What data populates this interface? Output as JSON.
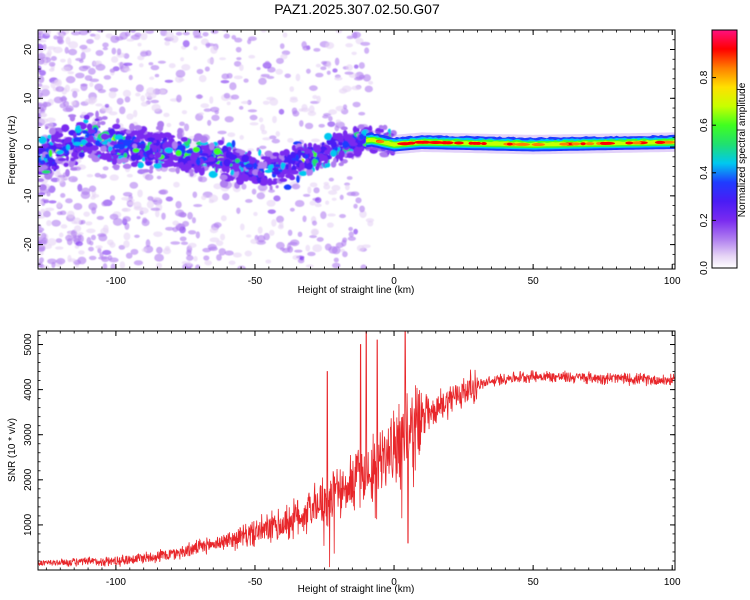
{
  "title": "PAZ1.2025.307.02.50.G07",
  "colors": {
    "snr_line": "#e8262a",
    "spectrogram_scale": [
      "#ffffff",
      "#e6d4f5",
      "#b07ff0",
      "#7a2bf0",
      "#4a1cf5",
      "#1f3cff",
      "#00c8f0",
      "#20e070",
      "#40ff20",
      "#c8ff00",
      "#ffe000",
      "#ff8000",
      "#ff0000",
      "#ff1080"
    ]
  },
  "chart_data": [
    {
      "type": "heatmap",
      "name": "spectrogram",
      "xlabel": "Height of straight line (km)",
      "ylabel": "Frequency (Hz)",
      "xlim": [
        -128,
        101
      ],
      "ylim": [
        -25,
        24
      ],
      "xticks": [
        -100,
        -50,
        0,
        50,
        100
      ],
      "yticks": [
        -20,
        -10,
        0,
        10,
        20
      ],
      "tone_center_hz": [
        {
          "x": -125,
          "y": -2
        },
        {
          "x": -110,
          "y": 2
        },
        {
          "x": -95,
          "y": 0
        },
        {
          "x": -80,
          "y": -1
        },
        {
          "x": -65,
          "y": -2
        },
        {
          "x": -55,
          "y": -4
        },
        {
          "x": -45,
          "y": -5
        },
        {
          "x": -35,
          "y": -3
        },
        {
          "x": -25,
          "y": -1
        },
        {
          "x": -15,
          "y": 1
        },
        {
          "x": -8,
          "y": 1.5
        },
        {
          "x": 0,
          "y": 0.5
        },
        {
          "x": 10,
          "y": 1
        },
        {
          "x": 50,
          "y": 0.5
        },
        {
          "x": 100,
          "y": 1
        }
      ],
      "colorbar": {
        "label": "Normalized spectral amplitude",
        "range": [
          0,
          1
        ],
        "ticks": [
          "0.0",
          "0.2",
          "0.4",
          "0.6",
          "0.8"
        ]
      }
    },
    {
      "type": "line",
      "name": "snr",
      "xlabel": "Height of straight line (km)",
      "ylabel": "SNR (10 * v/v)",
      "xlim": [
        -128,
        101
      ],
      "ylim": [
        0,
        5300
      ],
      "xticks": [
        -100,
        -50,
        0,
        50,
        100
      ],
      "yticks": [
        1000,
        2000,
        3000,
        4000,
        5000
      ],
      "trend": [
        {
          "x": -128,
          "y": 150
        },
        {
          "x": -100,
          "y": 200
        },
        {
          "x": -80,
          "y": 350
        },
        {
          "x": -60,
          "y": 650
        },
        {
          "x": -40,
          "y": 1000
        },
        {
          "x": -25,
          "y": 1500
        },
        {
          "x": -15,
          "y": 2000
        },
        {
          "x": -5,
          "y": 2400
        },
        {
          "x": 0,
          "y": 2700
        },
        {
          "x": 10,
          "y": 3300
        },
        {
          "x": 20,
          "y": 3800
        },
        {
          "x": 30,
          "y": 4100
        },
        {
          "x": 40,
          "y": 4250
        },
        {
          "x": 50,
          "y": 4300
        },
        {
          "x": 60,
          "y": 4280
        },
        {
          "x": 80,
          "y": 4250
        },
        {
          "x": 101,
          "y": 4200
        }
      ],
      "spikes": [
        {
          "x": -24,
          "y": 4400
        },
        {
          "x": -12,
          "y": 5000
        },
        {
          "x": -10,
          "y": 5300
        },
        {
          "x": -6,
          "y": 5100
        },
        {
          "x": 4,
          "y": 5300
        },
        {
          "x": 5,
          "y": 600
        }
      ]
    }
  ]
}
